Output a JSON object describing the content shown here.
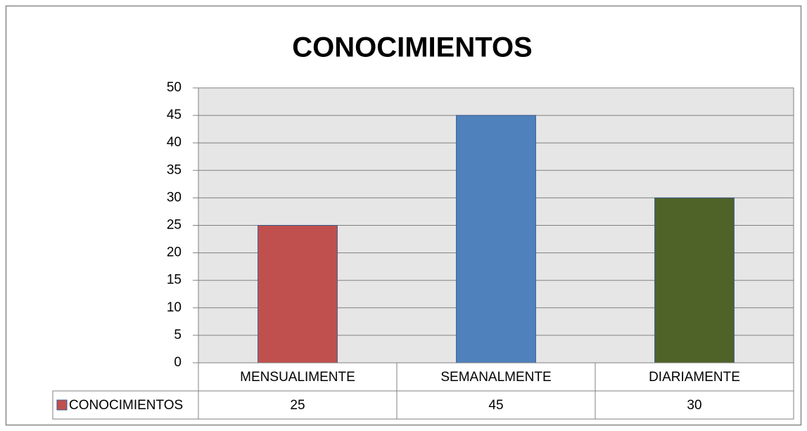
{
  "chart_data": {
    "type": "bar",
    "title": "CONOCIMIENTOS",
    "categories": [
      "MENSUALIMENTE",
      "SEMANALMENTE",
      "DIARIAMENTE"
    ],
    "series": [
      {
        "name": "CONOCIMIENTOS",
        "color": "#c0504d",
        "point_colors": [
          "#c0504d",
          "#4f81bd",
          "#4f6228"
        ],
        "values": [
          25,
          45,
          30
        ]
      }
    ],
    "ylim": [
      0,
      50
    ],
    "yticks": [
      0,
      5,
      10,
      15,
      20,
      25,
      30,
      35,
      40,
      45,
      50
    ],
    "grid": true,
    "data_table": true
  }
}
